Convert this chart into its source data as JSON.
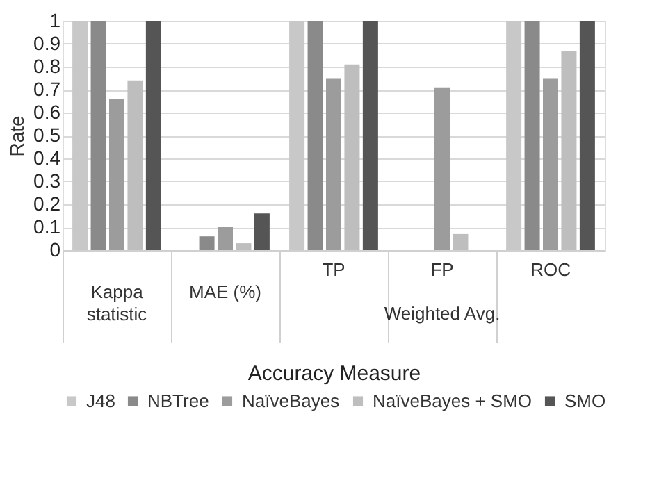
{
  "chart_data": {
    "type": "bar",
    "xlabel": "Accuracy Measure",
    "ylabel": "Rate",
    "categories": [
      "Kappa statistic",
      "MAE (%)",
      "TP",
      "FP",
      "ROC"
    ],
    "series": [
      {
        "name": "J48",
        "color": "#c8c8c8",
        "values": [
          1,
          0,
          1,
          0,
          1
        ]
      },
      {
        "name": "NBTree",
        "color": "#8a8a8a",
        "values": [
          1,
          0.06,
          1,
          0,
          1
        ]
      },
      {
        "name": "NaïveBayes",
        "color": "#9c9c9c",
        "values": [
          0.66,
          0.1,
          0.75,
          0.71,
          0.75
        ]
      },
      {
        "name": "NaïveBayes + SMO",
        "color": "#bebebe",
        "values": [
          0.74,
          0.03,
          0.81,
          0.07,
          0.87
        ]
      },
      {
        "name": "SMO",
        "color": "#555555",
        "values": [
          1,
          0.16,
          1,
          0,
          1
        ]
      }
    ],
    "ylim": [
      0,
      1
    ],
    "yticks": [
      0,
      0.1,
      0.2,
      0.3,
      0.4,
      0.5,
      0.6,
      0.7,
      0.8,
      0.9,
      1
    ],
    "grid": "y",
    "legend": "bottom",
    "annotations": [
      "Weighted Avg."
    ]
  }
}
